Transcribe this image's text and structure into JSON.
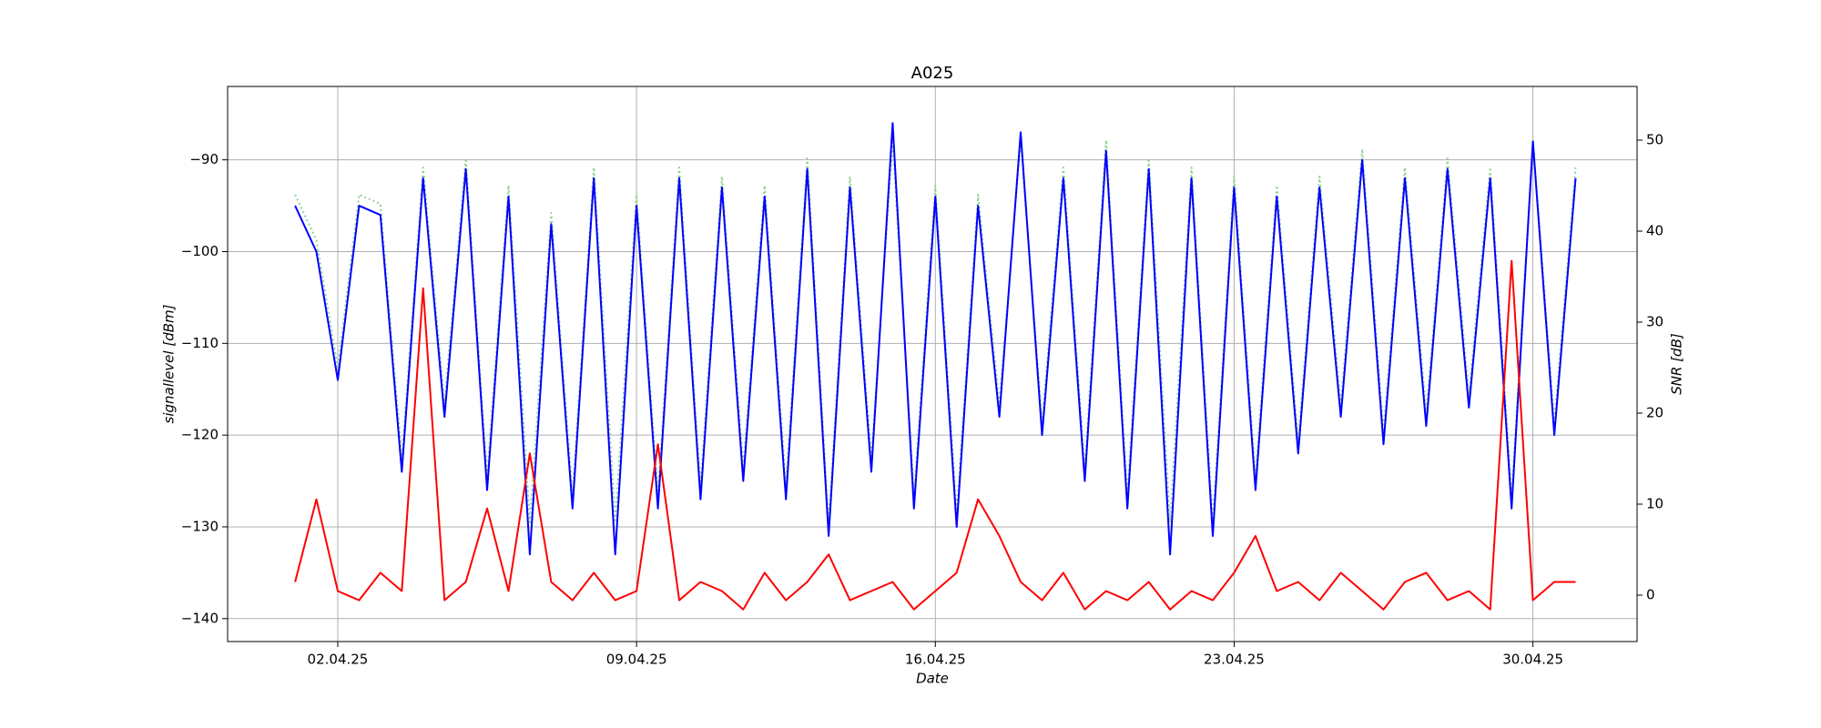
{
  "chart_data": {
    "type": "line",
    "title": "A025",
    "xlabel": "Date",
    "ylabel": "signallevel [dBm]",
    "y2label": "SNR [dB]",
    "x": [
      1.0,
      1.5,
      2.0,
      2.5,
      3.0,
      3.5,
      4.0,
      4.5,
      5.0,
      5.5,
      6.0,
      6.5,
      7.0,
      7.5,
      8.0,
      8.5,
      9.0,
      9.5,
      10.0,
      10.5,
      11.0,
      11.5,
      12.0,
      12.5,
      13.0,
      13.5,
      14.0,
      14.5,
      15.0,
      15.5,
      16.0,
      16.5,
      17.0,
      17.5,
      18.0,
      18.5,
      19.0,
      19.5,
      20.0,
      20.5,
      21.0,
      21.5,
      22.0,
      22.5,
      23.0,
      23.5,
      24.0,
      24.5,
      25.0,
      25.5,
      26.0,
      26.5,
      27.0,
      27.5,
      28.0,
      28.5,
      29.0,
      29.5,
      30.0,
      30.5,
      31.0
    ],
    "series": [
      {
        "color": "#90d090",
        "style": "dotted",
        "axis": "y2",
        "values": [
          44,
          39,
          25,
          44,
          43,
          15,
          47,
          21,
          48,
          13,
          45,
          8,
          42,
          11,
          47,
          8,
          44,
          11,
          47,
          12,
          46,
          14,
          45,
          12,
          48,
          8,
          46,
          15,
          50,
          11,
          45,
          9,
          44,
          21,
          50,
          19,
          47,
          14,
          50,
          11,
          48,
          8,
          47,
          8,
          46,
          13,
          45,
          17,
          46,
          21,
          49,
          18,
          47,
          20,
          48,
          22,
          47,
          11,
          50,
          19,
          47
        ]
      },
      {
        "color": "#0000ff",
        "style": "solid",
        "values": [
          -95,
          -100,
          -114,
          -95,
          -96,
          -124,
          -92,
          -118,
          -91,
          -126,
          -94,
          -133,
          -97,
          -128,
          -92,
          -133,
          -95,
          -128,
          -92,
          -127,
          -93,
          -125,
          -94,
          -127,
          -91,
          -131,
          -93,
          -124,
          -86,
          -128,
          -94,
          -130,
          -95,
          -118,
          -87,
          -120,
          -92,
          -125,
          -89,
          -128,
          -91,
          -133,
          -92,
          -131,
          -93,
          -126,
          -94,
          -122,
          -93,
          -118,
          -90,
          -121,
          -92,
          -119,
          -91,
          -117,
          -92,
          -128,
          -88,
          -120,
          -92
        ]
      },
      {
        "color": "#ff0000",
        "style": "solid",
        "values": [
          -136,
          -127,
          -137,
          -138,
          -135,
          -137,
          -104,
          -138,
          -136,
          -128,
          -137,
          -122,
          -136,
          -138,
          -135,
          -138,
          -137,
          -121,
          -138,
          -136,
          -137,
          -139,
          -135,
          -138,
          -136,
          -133,
          -138,
          -137,
          -136,
          -139,
          -137,
          -135,
          -127,
          -131,
          -136,
          -138,
          -135,
          -139,
          -137,
          -138,
          -136,
          -139,
          -137,
          -138,
          -135,
          -131,
          -137,
          -136,
          -138,
          -135,
          -137,
          -139,
          -136,
          -135,
          -138,
          -137,
          -139,
          -101,
          -138,
          -136,
          -136
        ]
      }
    ],
    "xlim": [
      -0.58,
      32.44
    ],
    "xticks": [
      {
        "value": 2,
        "label": "02.04.25"
      },
      {
        "value": 9,
        "label": "09.04.25"
      },
      {
        "value": 16,
        "label": "16.04.25"
      },
      {
        "value": 23,
        "label": "23.04.25"
      },
      {
        "value": 30,
        "label": "30.04.25"
      }
    ],
    "ylim": [
      -142.5,
      -82
    ],
    "yticks": [
      {
        "value": -140,
        "label": "−140"
      },
      {
        "value": -130,
        "label": "−130"
      },
      {
        "value": -120,
        "label": "−120"
      },
      {
        "value": -110,
        "label": "−110"
      },
      {
        "value": -100,
        "label": "−100"
      },
      {
        "value": -90,
        "label": "−90"
      }
    ],
    "y2lim": [
      -5.1,
      55.9
    ],
    "y2ticks": [
      0,
      10,
      20,
      30,
      40,
      50
    ],
    "grid": true
  }
}
